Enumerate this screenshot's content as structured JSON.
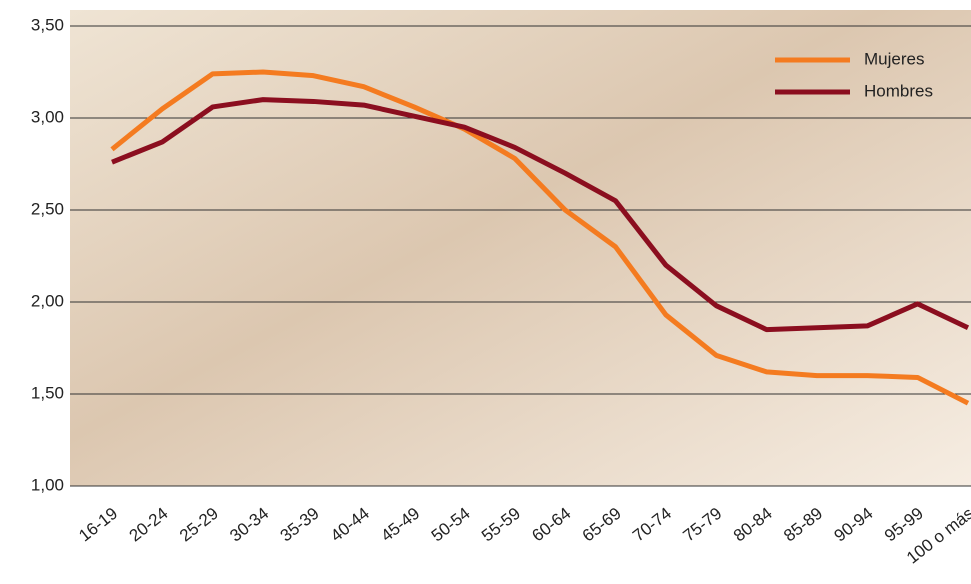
{
  "chart_data": {
    "type": "line",
    "categories": [
      "16-19",
      "20-24",
      "25-29",
      "30-34",
      "35-39",
      "40-44",
      "45-49",
      "50-54",
      "55-59",
      "60-64",
      "65-69",
      "70-74",
      "75-79",
      "80-84",
      "85-89",
      "90-94",
      "95-99",
      "100 o más"
    ],
    "series": [
      {
        "name": "Mujeres",
        "color": "#f47b20",
        "values": [
          2.83,
          3.05,
          3.24,
          3.25,
          3.23,
          3.17,
          3.06,
          2.94,
          2.78,
          2.5,
          2.3,
          1.93,
          1.71,
          1.62,
          1.6,
          1.6,
          1.59,
          1.45
        ]
      },
      {
        "name": "Hombres",
        "color": "#8b0e1f",
        "values": [
          2.76,
          2.87,
          3.06,
          3.1,
          3.09,
          3.07,
          3.01,
          2.95,
          2.84,
          2.7,
          2.55,
          2.2,
          1.98,
          1.85,
          1.86,
          1.87,
          1.99,
          1.86
        ]
      }
    ],
    "ylim": [
      1.0,
      3.5
    ],
    "yticks": [
      {
        "value": 1.0,
        "label": "1,00"
      },
      {
        "value": 1.5,
        "label": "1,50"
      },
      {
        "value": 2.0,
        "label": "2,00"
      },
      {
        "value": 2.5,
        "label": "2,50"
      },
      {
        "value": 3.0,
        "label": "3,00"
      },
      {
        "value": 3.5,
        "label": "3,50"
      }
    ],
    "grid": true,
    "legend": "top-right"
  }
}
